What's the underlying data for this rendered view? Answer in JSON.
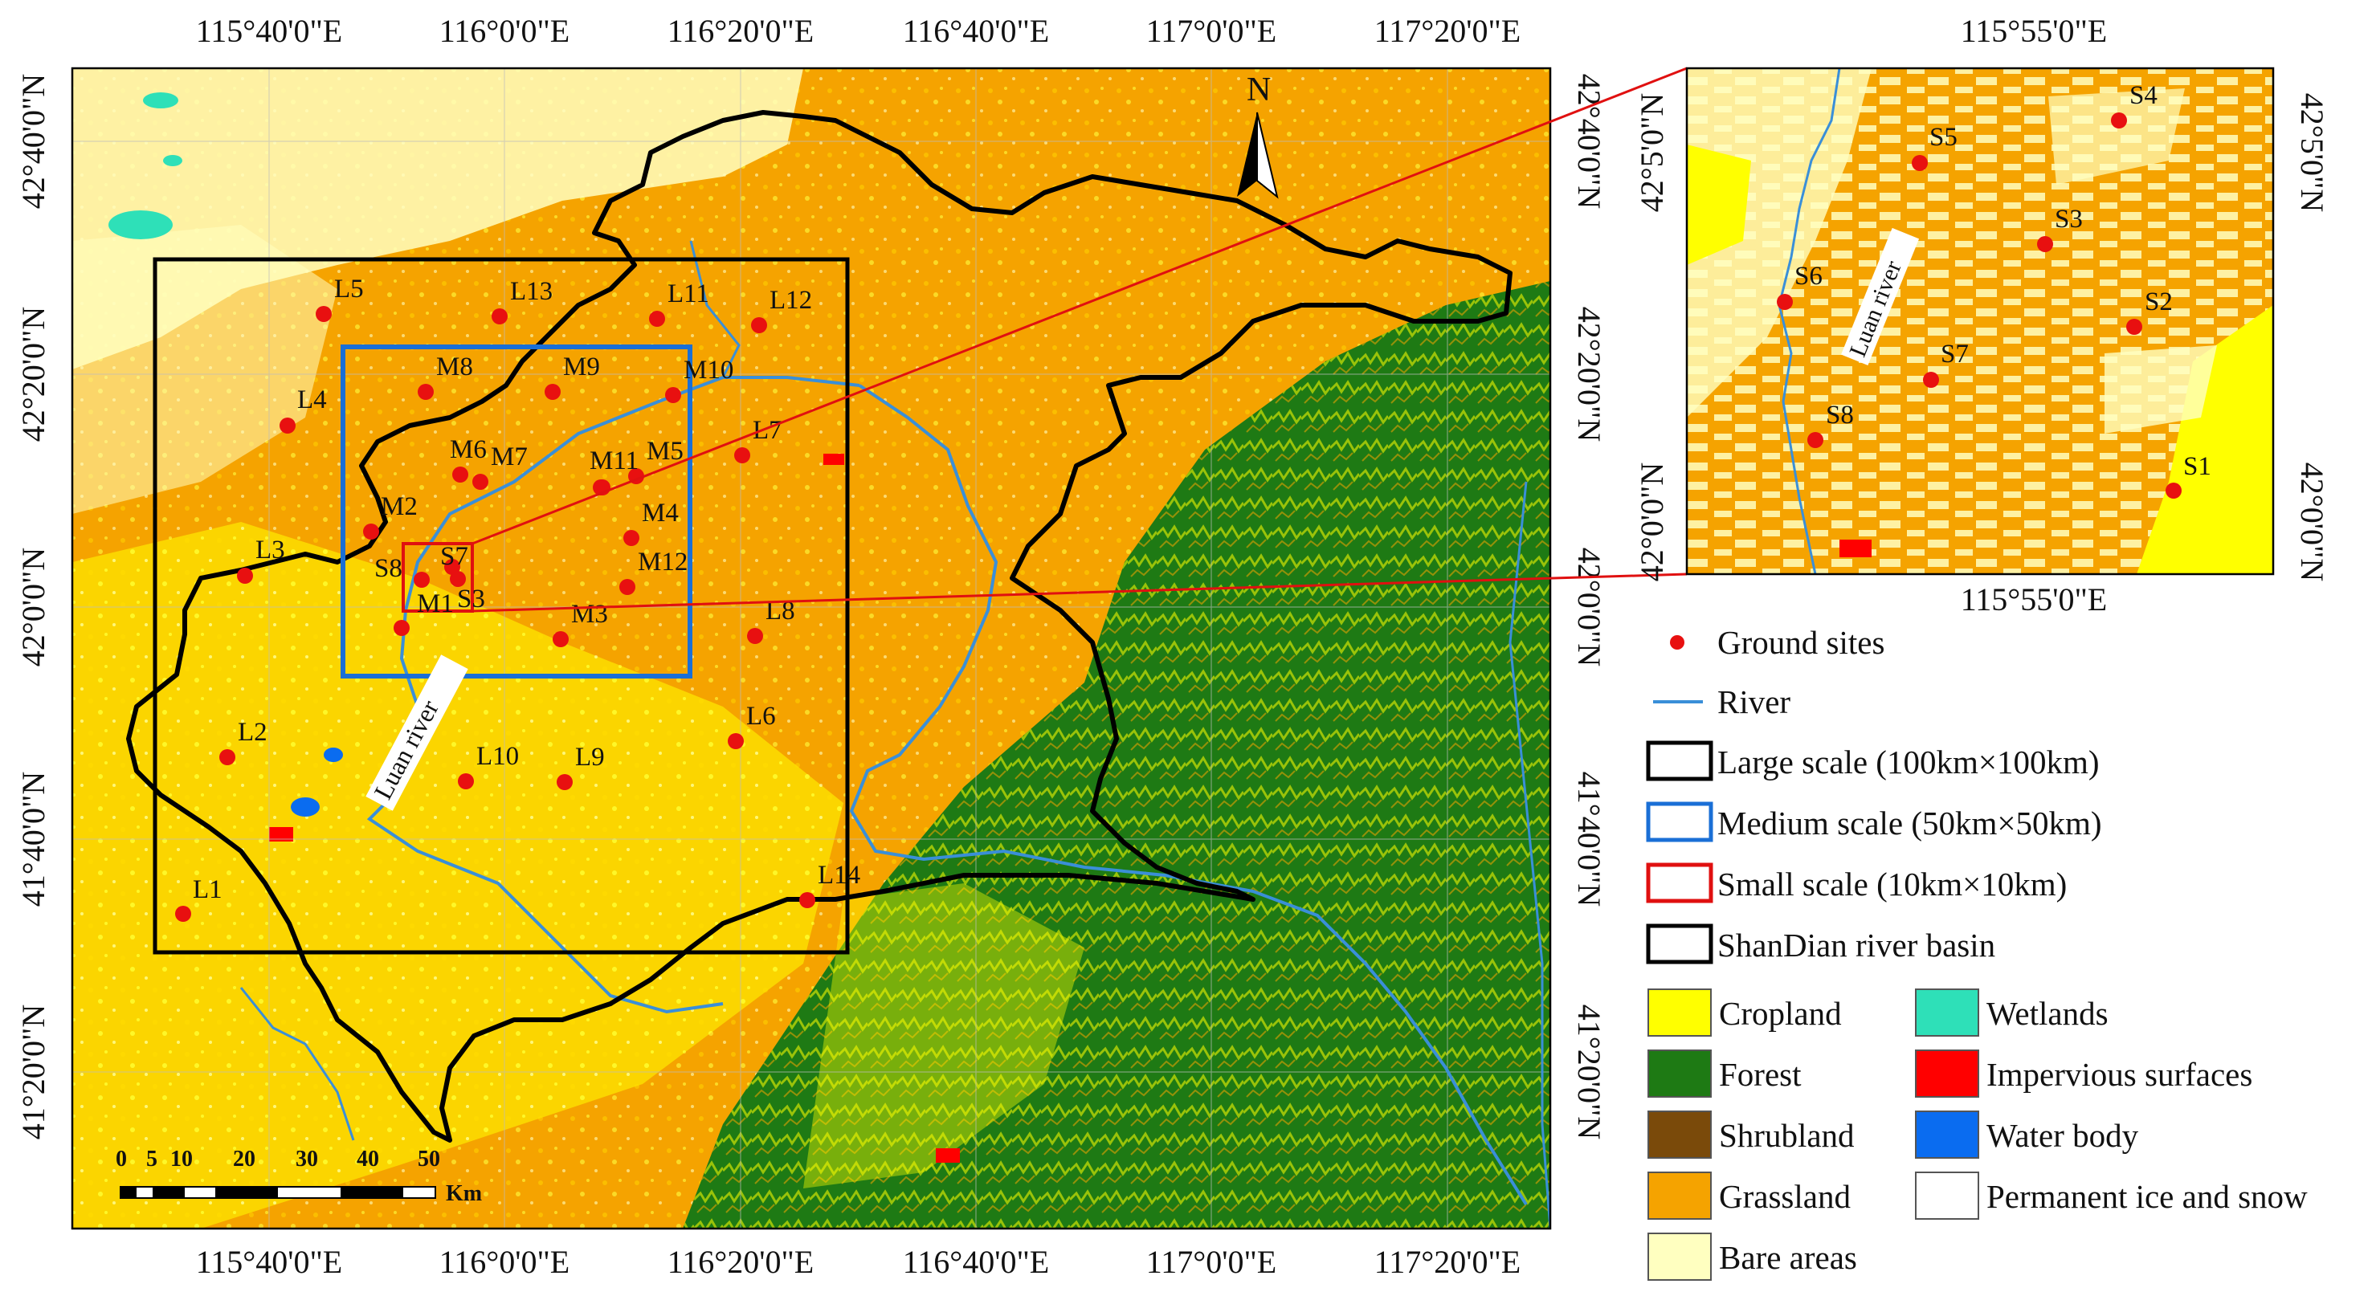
{
  "main_map": {
    "top_lon_labels": [
      "115°40'0\"E",
      "116°0'0\"E",
      "116°20'0\"E",
      "116°40'0\"E",
      "117°0'0\"E",
      "117°20'0\"E"
    ],
    "bottom_lon_labels": [
      "115°40'0\"E",
      "116°0'0\"E",
      "116°20'0\"E",
      "116°40'0\"E",
      "117°0'0\"E",
      "117°20'0\"E"
    ],
    "left_lat_labels": [
      "42°40'0\"N",
      "42°20'0\"N",
      "42°0'0\"N",
      "41°40'0\"N",
      "41°20'0\"N"
    ],
    "right_lat_labels": [
      "42°40'0\"N",
      "42°20'0\"N",
      "42°0'0\"N",
      "41°40'0\"N",
      "41°20'0\"N"
    ],
    "north_arrow": "N",
    "river_label": "Luan river",
    "scale_bar": {
      "ticks": [
        "0",
        "5",
        "10",
        "20",
        "30",
        "40",
        "50"
      ],
      "unit": "Km"
    },
    "sites": [
      {
        "label": "L1"
      },
      {
        "label": "L2"
      },
      {
        "label": "L3"
      },
      {
        "label": "L4"
      },
      {
        "label": "L5"
      },
      {
        "label": "L6"
      },
      {
        "label": "L7"
      },
      {
        "label": "L8"
      },
      {
        "label": "L9"
      },
      {
        "label": "L10"
      },
      {
        "label": "L11"
      },
      {
        "label": "L12"
      },
      {
        "label": "L13"
      },
      {
        "label": "L14"
      },
      {
        "label": "M1"
      },
      {
        "label": "M2"
      },
      {
        "label": "M3"
      },
      {
        "label": "M4"
      },
      {
        "label": "M5"
      },
      {
        "label": "M6"
      },
      {
        "label": "M7"
      },
      {
        "label": "M8"
      },
      {
        "label": "M9"
      },
      {
        "label": "M10"
      },
      {
        "label": "M11"
      },
      {
        "label": "M11"
      },
      {
        "label": "M12"
      },
      {
        "label": "S3"
      },
      {
        "label": "S7"
      },
      {
        "label": "S8"
      }
    ]
  },
  "inset_map": {
    "top_lon_label": "115°55'0\"E",
    "bottom_lon_label": "115°55'0\"E",
    "left_lat_labels": [
      "42°5'0\"N",
      "42°0'0\"N"
    ],
    "right_lat_labels": [
      "42°5'0\"N",
      "42°0'0\"N"
    ],
    "river_label": "Luan river",
    "sites": [
      {
        "label": "S1"
      },
      {
        "label": "S2"
      },
      {
        "label": "S3"
      },
      {
        "label": "S4"
      },
      {
        "label": "S5"
      },
      {
        "label": "S6"
      },
      {
        "label": "S7"
      },
      {
        "label": "S8"
      }
    ]
  },
  "legend": {
    "symbols": [
      {
        "label": "Ground sites"
      },
      {
        "label": "River"
      },
      {
        "label": "Large scale (100km×100km)",
        "color": "#000000"
      },
      {
        "label": "Medium scale (50km×50km)",
        "color": "#1a6fd6"
      },
      {
        "label": "Small scale (10km×10km)",
        "color": "#e01010"
      },
      {
        "label": "ShanDian river basin",
        "color": "#000000"
      }
    ],
    "classes_left": [
      {
        "label": "Cropland",
        "color": "#ffff00"
      },
      {
        "label": "Forest",
        "color": "#1e7a14"
      },
      {
        "label": "Shrubland",
        "color": "#7a4a0a"
      },
      {
        "label": "Grassland",
        "color": "#f5a300"
      },
      {
        "label": "Bare areas",
        "color": "#ffffc0"
      }
    ],
    "classes_right": [
      {
        "label": "Wetlands",
        "color": "#2ee0b8"
      },
      {
        "label": "Impervious surfaces",
        "color": "#ff0000"
      },
      {
        "label": "Water body",
        "color": "#0a6cf0"
      },
      {
        "label": "Permanent ice and snow",
        "color": "#ffffff"
      }
    ]
  },
  "colors": {
    "site_marker": "#e81010",
    "river": "#3a8fd8",
    "grassland": "#f5a300",
    "cropland": "#ffff00",
    "forest": "#1e7a14",
    "bare": "#ffffc0"
  }
}
